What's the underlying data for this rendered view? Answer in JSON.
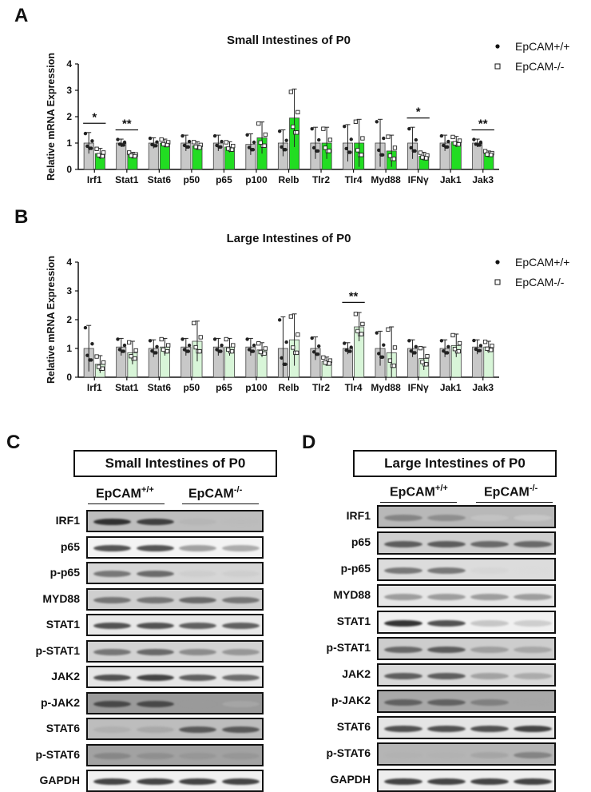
{
  "panels": {
    "a": "A",
    "b": "B",
    "c": "C",
    "d": "D"
  },
  "legend": {
    "wt": "EpCAM+/+",
    "ko": "EpCAM-/-",
    "wt_base": "EpCAM",
    "wt_sup": "+/+",
    "ko_base": "EpCAM",
    "ko_sup": "-/-"
  },
  "colors": {
    "wt_bar": "#c8c8c8",
    "ko_bar_a": "#22dd22",
    "ko_bar_b": "#d8f5d8"
  },
  "chart_data": [
    {
      "type": "bar",
      "title": "Small Intestines of P0",
      "ylabel": "Relative mRNA Expression",
      "xlabel": "",
      "ylim": [
        0,
        4
      ],
      "yticks": [
        0,
        1,
        2,
        3,
        4
      ],
      "categories": [
        "Irf1",
        "Stat1",
        "Stat6",
        "p50",
        "p65",
        "p100",
        "Relb",
        "Tlr2",
        "Tlr4",
        "Myd88",
        "IFNγ",
        "Jak1",
        "Jak3"
      ],
      "series": [
        {
          "name": "EpCAM+/+",
          "values": [
            1.0,
            1.0,
            1.0,
            1.0,
            1.0,
            0.95,
            1.0,
            1.0,
            1.0,
            1.0,
            1.0,
            1.0,
            1.0
          ],
          "errors": [
            0.4,
            0.15,
            0.2,
            0.3,
            0.3,
            0.4,
            0.5,
            0.6,
            0.7,
            0.9,
            0.6,
            0.3,
            0.15
          ]
        },
        {
          "name": "EpCAM-/-",
          "values": [
            0.6,
            0.55,
            1.0,
            0.9,
            0.85,
            1.2,
            1.95,
            1.0,
            1.0,
            0.7,
            0.5,
            1.05,
            0.6
          ],
          "errors": [
            0.2,
            0.1,
            0.15,
            0.15,
            0.2,
            0.6,
            1.1,
            0.6,
            0.9,
            0.6,
            0.15,
            0.2,
            0.1
          ]
        }
      ],
      "significance": [
        {
          "category": "Irf1",
          "label": "*"
        },
        {
          "category": "Stat1",
          "label": "**"
        },
        {
          "category": "IFNγ",
          "label": "*"
        },
        {
          "category": "Jak3",
          "label": "**"
        }
      ],
      "legend_position": "top-right"
    },
    {
      "type": "bar",
      "title": "Large Intestines of P0",
      "ylabel": "Relative mRNA Expression",
      "xlabel": "",
      "ylim": [
        0,
        4
      ],
      "yticks": [
        0,
        1,
        2,
        3,
        4
      ],
      "categories": [
        "Irf1",
        "Stat1",
        "Stat6",
        "p50",
        "p65",
        "p100",
        "Relb",
        "Tlr2",
        "Tlr4",
        "Myd88",
        "IFNγ",
        "Jak1",
        "Jak3"
      ],
      "series": [
        {
          "name": "EpCAM+/+",
          "values": [
            1.0,
            1.05,
            1.0,
            1.05,
            1.05,
            1.05,
            1.0,
            1.0,
            1.0,
            1.0,
            1.0,
            1.0,
            1.05
          ],
          "errors": [
            0.8,
            0.3,
            0.3,
            0.3,
            0.3,
            0.3,
            1.1,
            0.4,
            0.2,
            0.6,
            0.3,
            0.3,
            0.25
          ]
        },
        {
          "name": "EpCAM-/-",
          "values": [
            0.45,
            0.85,
            1.05,
            1.25,
            1.05,
            0.95,
            1.3,
            0.55,
            1.75,
            0.85,
            0.65,
            1.1,
            1.05
          ],
          "errors": [
            0.3,
            0.4,
            0.3,
            0.7,
            0.3,
            0.25,
            0.9,
            0.15,
            0.5,
            0.9,
            0.4,
            0.4,
            0.2
          ]
        }
      ],
      "significance": [
        {
          "category": "Tlr4",
          "label": "**"
        }
      ],
      "legend_position": "top-right"
    }
  ],
  "blots": {
    "c": {
      "title": "Small Intestines of P0",
      "group_wt": "EpCAM+/+",
      "group_ko": "EpCAM-/-",
      "rows": [
        {
          "label": "IRF1",
          "bg": "#bdbdbd",
          "intensities": [
            0.95,
            0.9,
            0.3,
            0.25
          ]
        },
        {
          "label": "p65",
          "bg": "#f3f3f3",
          "intensities": [
            0.85,
            0.85,
            0.55,
            0.5
          ]
        },
        {
          "label": "p-p65",
          "bg": "#d6d6d6",
          "intensities": [
            0.7,
            0.75,
            0.2,
            0.2
          ]
        },
        {
          "label": "MYD88",
          "bg": "#cfcfcf",
          "intensities": [
            0.7,
            0.7,
            0.75,
            0.7
          ]
        },
        {
          "label": "STAT1",
          "bg": "#e8e8e8",
          "intensities": [
            0.85,
            0.85,
            0.8,
            0.8
          ]
        },
        {
          "label": "p-STAT1",
          "bg": "#d2d2d2",
          "intensities": [
            0.7,
            0.75,
            0.6,
            0.55
          ]
        },
        {
          "label": "JAK2",
          "bg": "#e6e6e6",
          "intensities": [
            0.85,
            0.9,
            0.8,
            0.75
          ]
        },
        {
          "label": "p-JAK2",
          "bg": "#9a9a9a",
          "intensities": [
            0.85,
            0.85,
            0.4,
            0.3
          ]
        },
        {
          "label": "STAT6",
          "bg": "#bdbdbd",
          "intensities": [
            0.35,
            0.4,
            0.8,
            0.8
          ]
        },
        {
          "label": "p-STAT6",
          "bg": "#a2a2a2",
          "intensities": [
            0.55,
            0.5,
            0.45,
            0.45
          ]
        },
        {
          "label": "GAPDH",
          "bg": "#f0f0f0",
          "intensities": [
            0.9,
            0.9,
            0.9,
            0.9
          ]
        }
      ]
    },
    "d": {
      "title": "Large Intestines of P0",
      "group_wt": "EpCAM+/+",
      "group_ko": "EpCAM-/-",
      "rows": [
        {
          "label": "IRF1",
          "bg": "#b8b8b8",
          "intensities": [
            0.6,
            0.55,
            0.15,
            0.1
          ]
        },
        {
          "label": "p65",
          "bg": "#cfcfcf",
          "intensities": [
            0.8,
            0.8,
            0.75,
            0.75
          ]
        },
        {
          "label": "p-p65",
          "bg": "#dcdcdc",
          "intensities": [
            0.7,
            0.7,
            0.15,
            0.1
          ]
        },
        {
          "label": "MYD88",
          "bg": "#e6e6e6",
          "intensities": [
            0.55,
            0.55,
            0.55,
            0.55
          ]
        },
        {
          "label": "STAT1",
          "bg": "#f0f0f0",
          "intensities": [
            0.95,
            0.85,
            0.35,
            0.3
          ]
        },
        {
          "label": "p-STAT1",
          "bg": "#cdcdcd",
          "intensities": [
            0.75,
            0.8,
            0.5,
            0.45
          ]
        },
        {
          "label": "JAK2",
          "bg": "#d8d8d8",
          "intensities": [
            0.8,
            0.8,
            0.5,
            0.45
          ]
        },
        {
          "label": "p-JAK2",
          "bg": "#a8a8a8",
          "intensities": [
            0.75,
            0.75,
            0.6,
            0.35
          ]
        },
        {
          "label": "STAT6",
          "bg": "#e4e4e4",
          "intensities": [
            0.85,
            0.85,
            0.85,
            0.9
          ]
        },
        {
          "label": "p-STAT6",
          "bg": "#b5b5b5",
          "intensities": [
            0.3,
            0.3,
            0.4,
            0.6
          ]
        },
        {
          "label": "GAPDH",
          "bg": "#ededed",
          "intensities": [
            0.9,
            0.9,
            0.9,
            0.9
          ]
        }
      ]
    }
  }
}
